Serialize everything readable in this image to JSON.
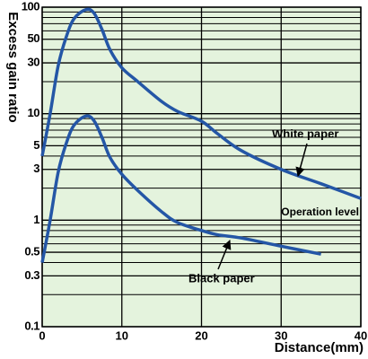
{
  "chart_data": {
    "type": "line",
    "y_label": "Excess gain ratio",
    "x_label": "Distance(mm)",
    "xlim": [
      0,
      40
    ],
    "xticks": [
      0,
      10,
      20,
      30,
      40
    ],
    "ylim": [
      0.1,
      100
    ],
    "yticks": [
      0.1,
      0.3,
      0.5,
      1,
      3,
      5,
      10,
      30,
      50,
      100
    ],
    "y_minor_grid": [
      0.2,
      0.4,
      0.6,
      0.7,
      0.8,
      0.9,
      2,
      4,
      6,
      7,
      8,
      9,
      20,
      40,
      60,
      70,
      80,
      90
    ],
    "log_y": true,
    "grid": true,
    "background": "#e4f3dd",
    "series": [
      {
        "name": "White paper",
        "color": "#2456a6",
        "x": [
          0,
          1,
          2,
          3,
          4,
          5.5,
          6.5,
          7.5,
          8.5,
          10,
          12,
          15,
          17,
          20,
          22,
          25,
          30,
          35,
          40
        ],
        "values": [
          4,
          10,
          28,
          52,
          78,
          95,
          88,
          62,
          40,
          27,
          20,
          13,
          10.5,
          8.5,
          6.5,
          4.5,
          3,
          2.2,
          1.6
        ]
      },
      {
        "name": "Black paper",
        "color": "#2456a6",
        "x": [
          0,
          1,
          2,
          3,
          4,
          5.5,
          6.5,
          7.5,
          8.5,
          10,
          12,
          15,
          17,
          20,
          22,
          25,
          30,
          35
        ],
        "values": [
          0.4,
          1,
          2.8,
          5.2,
          7.8,
          9.5,
          8.6,
          6,
          3.9,
          2.7,
          1.9,
          1.2,
          0.95,
          0.8,
          0.73,
          0.68,
          0.57,
          0.48
        ]
      }
    ],
    "annotations": [
      "White paper",
      "Operation level",
      "Black paper"
    ]
  }
}
